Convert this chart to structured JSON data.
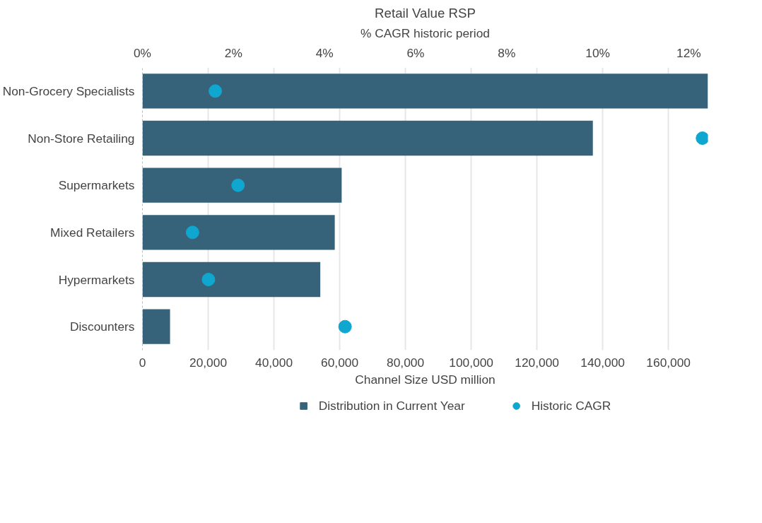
{
  "chart_data": {
    "type": "bar",
    "orientation": "horizontal",
    "title": "Retail Value RSP",
    "xlabel": "Channel Size USD million",
    "x2label": "% CAGR historic period",
    "categories": [
      "Non-Grocery Specialists",
      "Non-Store Retailing",
      "Supermarkets",
      "Mixed Retailers",
      "Hypermarkets",
      "Discounters"
    ],
    "series": [
      {
        "name": "Distribution in Current Year",
        "color": "#36637a",
        "values": [
          172000,
          137000,
          60600,
          58500,
          54100,
          8400
        ]
      },
      {
        "name": "Historic CAGR",
        "type": "scatter",
        "axis": "x2",
        "marker": "circle",
        "color": "#0fa6cf",
        "values": [
          1.6,
          12.3,
          2.1,
          1.1,
          1.45,
          4.45
        ]
      }
    ],
    "xlim": [
      0,
      172000
    ],
    "xticks": [
      0,
      {
        "value": 20000,
        "label": "20,000"
      },
      {
        "value": 40000,
        "label": "40,000"
      },
      {
        "value": 60000,
        "label": "60,000"
      },
      {
        "value": 80000,
        "label": "80,000"
      },
      {
        "value": 100000,
        "label": "100,000"
      },
      {
        "value": 120000,
        "label": "120,000"
      },
      {
        "value": 140000,
        "label": "140,000"
      },
      {
        "value": 160000,
        "label": "160,000"
      }
    ],
    "x2lim": [
      0,
      12.42
    ],
    "x2ticks": [
      {
        "value": 0,
        "label": "0%"
      },
      {
        "value": 2,
        "label": "2%"
      },
      {
        "value": 4,
        "label": "4%"
      },
      {
        "value": 6,
        "label": "6%"
      },
      {
        "value": 8,
        "label": "8%"
      },
      {
        "value": 10,
        "label": "10%"
      },
      {
        "value": 12,
        "label": "12%"
      }
    ],
    "grid": "x",
    "legend": "bottom"
  }
}
